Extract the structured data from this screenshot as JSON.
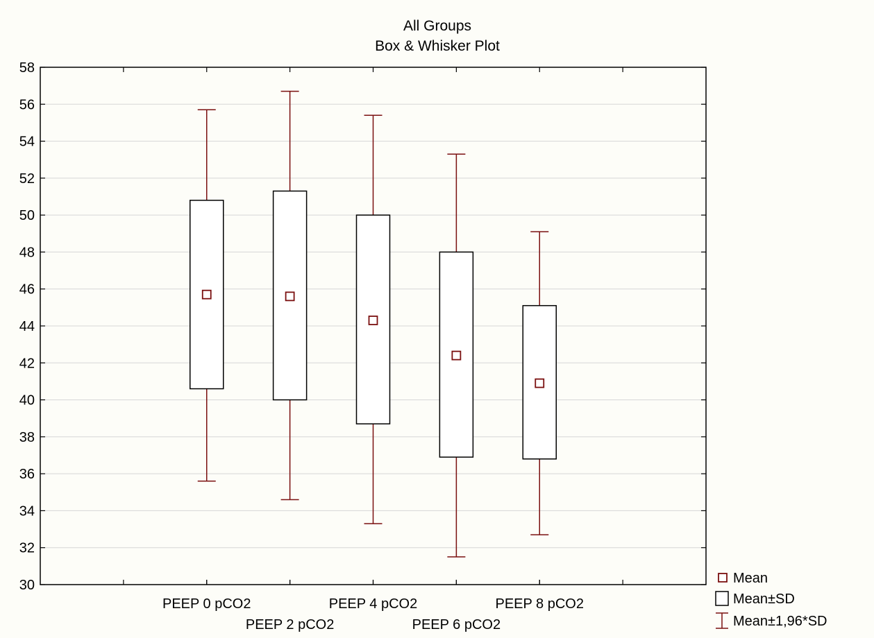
{
  "chart_data": {
    "type": "box",
    "title": "All Groups",
    "subtitle": "Box & Whisker Plot",
    "xlabel": "",
    "ylabel": "",
    "ylim": [
      30,
      58
    ],
    "yticks": [
      30,
      32,
      34,
      36,
      38,
      40,
      42,
      44,
      46,
      48,
      50,
      52,
      54,
      56,
      58
    ],
    "grid": true,
    "legend_position": "bottom-right",
    "series_color": "#7a0f0f",
    "categories": [
      "PEEP 0 pCO2",
      "PEEP 2 pCO2",
      "PEEP 4 pCO2",
      "PEEP 6 pCO2",
      "PEEP 8 pCO2"
    ],
    "groups": [
      {
        "label": "PEEP 0 pCO2",
        "mean": 45.7,
        "sd_low": 40.6,
        "sd_high": 50.8,
        "ci_low": 35.6,
        "ci_high": 55.7
      },
      {
        "label": "PEEP 2 pCO2",
        "mean": 45.6,
        "sd_low": 40.0,
        "sd_high": 51.3,
        "ci_low": 34.6,
        "ci_high": 56.7
      },
      {
        "label": "PEEP 4 pCO2",
        "mean": 44.3,
        "sd_low": 38.7,
        "sd_high": 50.0,
        "ci_low": 33.3,
        "ci_high": 55.4
      },
      {
        "label": "PEEP 6 pCO2",
        "mean": 42.4,
        "sd_low": 36.9,
        "sd_high": 48.0,
        "ci_low": 31.5,
        "ci_high": 53.3
      },
      {
        "label": "PEEP 8 pCO2",
        "mean": 40.9,
        "sd_low": 36.8,
        "sd_high": 45.1,
        "ci_low": 32.7,
        "ci_high": 49.1
      }
    ],
    "legend": [
      {
        "label": "Mean",
        "icon": "mean-square-icon"
      },
      {
        "label": "Mean±SD",
        "icon": "box-icon"
      },
      {
        "label": "Mean±1,96*SD",
        "icon": "whisker-icon"
      }
    ]
  }
}
